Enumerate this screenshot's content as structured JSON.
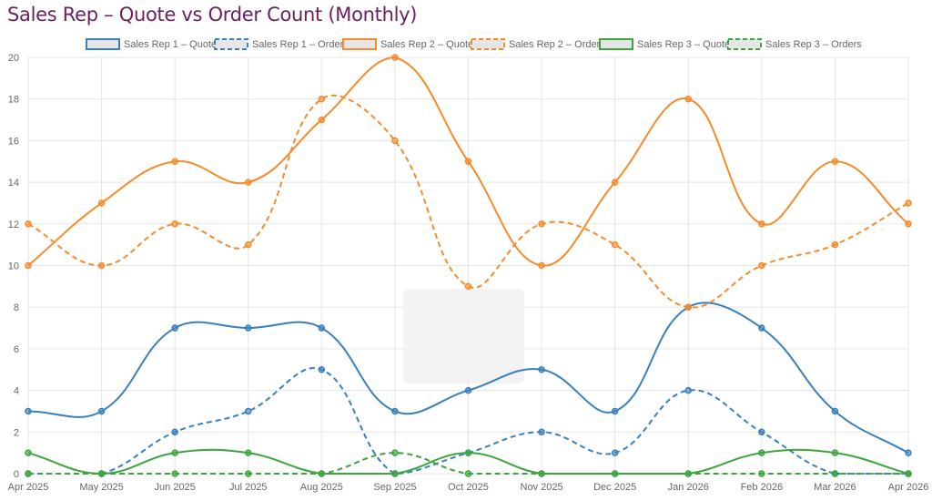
{
  "title": "Sales Rep – Quote vs Order Count (Monthly)",
  "chart_data": {
    "type": "line",
    "title": "Sales Rep – Quote vs Order Count (Monthly)",
    "categories": [
      "Apr 2025",
      "May 2025",
      "Jun 2025",
      "Jul 2025",
      "Aug 2025",
      "Sep 2025",
      "Oct 2025",
      "Nov 2025",
      "Dec 2025",
      "Jan 2026",
      "Feb 2026",
      "Mar 2026",
      "Apr 2026"
    ],
    "ylim": [
      0,
      20
    ],
    "yticks": [
      0,
      2,
      4,
      6,
      8,
      10,
      12,
      14,
      16,
      18,
      20
    ],
    "grid": true,
    "legend_position": "top",
    "series": [
      {
        "name": "Sales Rep 1 – Quotes",
        "color": "#3a80bd",
        "dashed": false,
        "values": [
          3,
          3,
          7,
          7,
          7,
          3,
          4,
          5,
          3,
          8,
          7,
          3,
          1
        ]
      },
      {
        "name": "Sales Rep 1 – Orders",
        "color": "#3a80bd",
        "dashed": true,
        "values": [
          0,
          0,
          2,
          3,
          5,
          0,
          1,
          2,
          1,
          4,
          2,
          0,
          0
        ]
      },
      {
        "name": "Sales Rep 2 – Quotes",
        "color": "#f58b2b",
        "dashed": false,
        "values": [
          10,
          13,
          15,
          14,
          17,
          20,
          15,
          10,
          14,
          18,
          12,
          15,
          12
        ]
      },
      {
        "name": "Sales Rep 2 – Orders",
        "color": "#f58b2b",
        "dashed": true,
        "values": [
          12,
          10,
          12,
          11,
          18,
          16,
          9,
          12,
          11,
          8,
          10,
          11,
          13
        ]
      },
      {
        "name": "Sales Rep 3 – Quotes",
        "color": "#3ca53c",
        "dashed": false,
        "values": [
          1,
          0,
          1,
          1,
          0,
          0,
          1,
          0,
          0,
          0,
          1,
          1,
          0
        ]
      },
      {
        "name": "Sales Rep 3 – Orders",
        "color": "#3ca53c",
        "dashed": true,
        "values": [
          0,
          0,
          0,
          0,
          0,
          1,
          0,
          0,
          0,
          0,
          0,
          0,
          0
        ]
      }
    ]
  }
}
